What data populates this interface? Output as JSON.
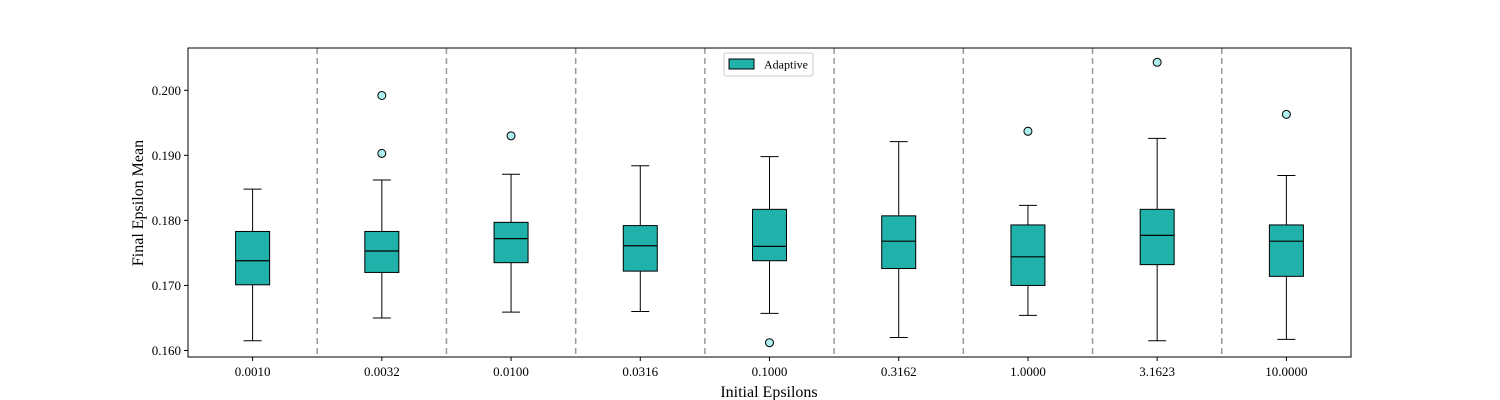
{
  "chart_data": {
    "type": "box",
    "title": "",
    "xlabel": "Initial Epsilons",
    "ylabel": "Final Epsilon Mean",
    "ylim": [
      0.159,
      0.2065
    ],
    "yticks": [
      0.16,
      0.17,
      0.18,
      0.19,
      0.2
    ],
    "ytick_labels": [
      "0.160",
      "0.170",
      "0.180",
      "0.190",
      "0.200"
    ],
    "categories": [
      "0.0010",
      "0.0032",
      "0.0100",
      "0.0316",
      "0.1000",
      "0.3162",
      "1.0000",
      "3.1623",
      "10.0000"
    ],
    "grid": false,
    "separators": "dashed-vertical",
    "legend": {
      "placement": "top-center",
      "entries": [
        "Adaptive"
      ]
    },
    "series": [
      {
        "name": "Adaptive",
        "color": "#20b2aa",
        "boxes": [
          {
            "whislo": 0.1615,
            "q1": 0.1701,
            "med": 0.1738,
            "q3": 0.1783,
            "whishi": 0.1848,
            "fliers": []
          },
          {
            "whislo": 0.165,
            "q1": 0.172,
            "med": 0.1753,
            "q3": 0.1783,
            "whishi": 0.1862,
            "fliers": [
              0.1903,
              0.1992
            ]
          },
          {
            "whislo": 0.1659,
            "q1": 0.1735,
            "med": 0.1772,
            "q3": 0.1797,
            "whishi": 0.1871,
            "fliers": [
              0.193
            ]
          },
          {
            "whislo": 0.166,
            "q1": 0.1722,
            "med": 0.1761,
            "q3": 0.1792,
            "whishi": 0.1884,
            "fliers": []
          },
          {
            "whislo": 0.1657,
            "q1": 0.1738,
            "med": 0.176,
            "q3": 0.1817,
            "whishi": 0.1898,
            "fliers": [
              0.1612
            ]
          },
          {
            "whislo": 0.162,
            "q1": 0.1726,
            "med": 0.1768,
            "q3": 0.1807,
            "whishi": 0.1921,
            "fliers": []
          },
          {
            "whislo": 0.1654,
            "q1": 0.17,
            "med": 0.1744,
            "q3": 0.1793,
            "whishi": 0.1823,
            "fliers": [
              0.1937
            ]
          },
          {
            "whislo": 0.1615,
            "q1": 0.1732,
            "med": 0.1777,
            "q3": 0.1817,
            "whishi": 0.1926,
            "fliers": [
              0.2043
            ]
          },
          {
            "whislo": 0.1617,
            "q1": 0.1714,
            "med": 0.1768,
            "q3": 0.1793,
            "whishi": 0.1869,
            "fliers": [
              0.1963
            ]
          }
        ]
      }
    ]
  }
}
